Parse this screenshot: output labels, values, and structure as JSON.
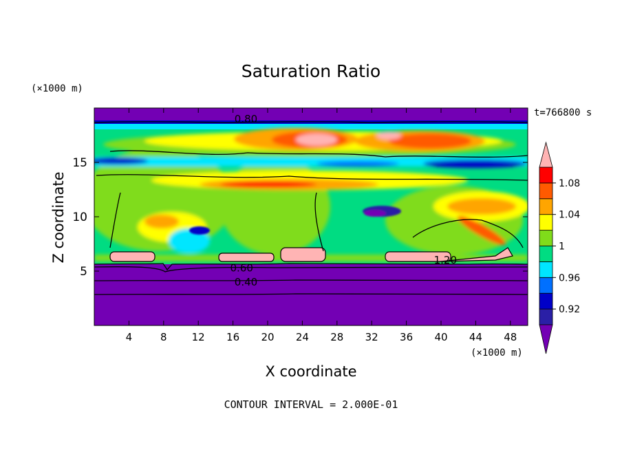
{
  "chart_data": {
    "type": "heatmap",
    "title": "Saturation Ratio",
    "xlabel": "X coordinate",
    "ylabel": "Z coordinate",
    "x_unit_label": "(×1000 m)",
    "y_unit_label": "(×1000 m)",
    "time_label": "t=766800 s",
    "footer": "CONTOUR INTERVAL = 2.000E-01",
    "xlim": [
      0,
      50
    ],
    "ylim": [
      0,
      20
    ],
    "x_ticks": [
      "4",
      "8",
      "12",
      "16",
      "20",
      "24",
      "28",
      "32",
      "36",
      "40",
      "44",
      "48"
    ],
    "y_ticks": [
      "5",
      "10",
      "15"
    ],
    "x_tick_values": [
      4,
      8,
      12,
      16,
      20,
      24,
      28,
      32,
      36,
      40,
      44,
      48
    ],
    "y_tick_values": [
      5,
      10,
      15
    ],
    "colorbar": {
      "levels": [
        0.9,
        0.92,
        0.94,
        0.96,
        0.98,
        1.0,
        1.02,
        1.04,
        1.06,
        1.08,
        1.1
      ],
      "labels": [
        "0.92",
        "0.96",
        "1",
        "1.04",
        "1.08"
      ],
      "label_values": [
        0.92,
        0.96,
        1.0,
        1.04,
        1.08
      ],
      "colors": [
        "#7300b4",
        "#2a1fa6",
        "#0000c8",
        "#0070ff",
        "#00e6ff",
        "#00dc82",
        "#80dc1a",
        "#ffff00",
        "#ffa500",
        "#ff5a00",
        "#ff0000",
        "#ffb4b4"
      ]
    },
    "contour_labels": [
      {
        "text": "0.80",
        "x": 17.5,
        "y": 19.0
      },
      {
        "text": "0.60",
        "x": 17.0,
        "y": 5.3
      },
      {
        "text": "0.40",
        "x": 17.5,
        "y": 4.0
      },
      {
        "text": "1.20",
        "x": 40.5,
        "y": 6.0
      }
    ]
  }
}
